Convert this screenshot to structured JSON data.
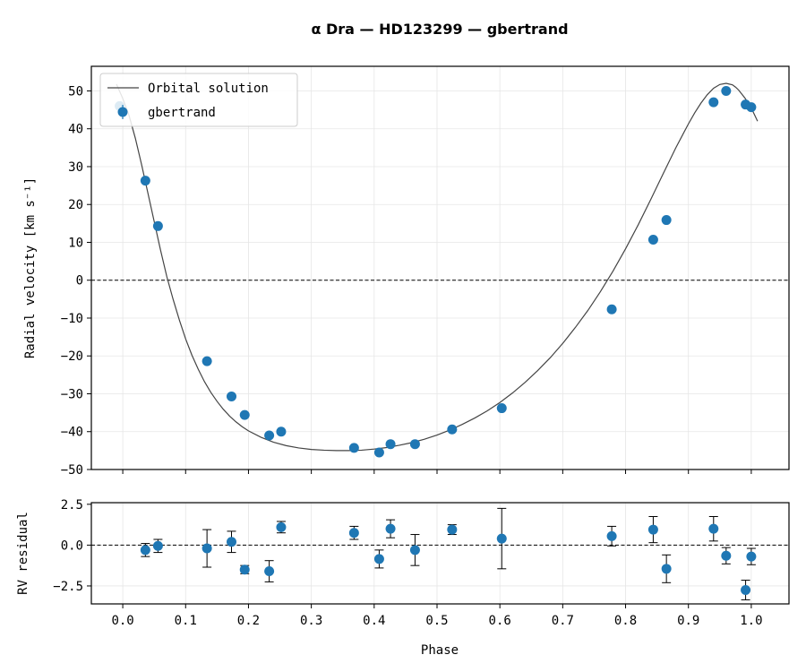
{
  "chart_data": {
    "type": "scatter",
    "title": "α Dra — HD123299 — gbertrand",
    "colors": {
      "points": "#1f77b4",
      "model": "#444444",
      "zero_line": "#000000",
      "grid": "#e6e6e6"
    },
    "legend": {
      "placement": "top-left",
      "entries": [
        "Orbital solution",
        "gbertrand"
      ]
    },
    "shared_x": {
      "label": "Phase",
      "lim": [
        -0.05,
        1.06
      ],
      "ticks": [
        0.0,
        0.1,
        0.2,
        0.3,
        0.4,
        0.5,
        0.6,
        0.7,
        0.8,
        0.9,
        1.0
      ],
      "tick_labels": [
        "0.0",
        "0.1",
        "0.2",
        "0.3",
        "0.4",
        "0.5",
        "0.6",
        "0.7",
        "0.8",
        "0.9",
        "1.0"
      ]
    },
    "panels": [
      {
        "ylabel": "Radial velocity [km s⁻¹]",
        "ylim": [
          -50,
          56.5
        ],
        "yticks": [
          -50,
          -40,
          -30,
          -20,
          -10,
          0,
          10,
          20,
          30,
          40,
          50
        ],
        "ytick_labels": [
          "−50",
          "−40",
          "−30",
          "−20",
          "−10",
          "0",
          "10",
          "20",
          "30",
          "40",
          "50"
        ],
        "grid": true,
        "zero_line": true,
        "model_series": {
          "name": "Orbital solution",
          "phase": [
            -0.01,
            0.0,
            0.01,
            0.02,
            0.03,
            0.04,
            0.05,
            0.06,
            0.07,
            0.08,
            0.09,
            0.1,
            0.11,
            0.12,
            0.13,
            0.14,
            0.15,
            0.16,
            0.17,
            0.18,
            0.19,
            0.2,
            0.22,
            0.24,
            0.26,
            0.28,
            0.3,
            0.32,
            0.34,
            0.36,
            0.38,
            0.4,
            0.42,
            0.44,
            0.46,
            0.48,
            0.5,
            0.52,
            0.54,
            0.56,
            0.58,
            0.6,
            0.62,
            0.64,
            0.66,
            0.68,
            0.7,
            0.72,
            0.74,
            0.76,
            0.78,
            0.8,
            0.82,
            0.84,
            0.86,
            0.88,
            0.9,
            0.91,
            0.92,
            0.93,
            0.94,
            0.95,
            0.96,
            0.97,
            0.975,
            0.98,
            0.99,
            1.0,
            1.01
          ],
          "rv": [
            51.8,
            48.0,
            43.5,
            37.5,
            30.5,
            23.0,
            15.5,
            8.0,
            1.0,
            -5.0,
            -10.5,
            -15.5,
            -19.8,
            -23.5,
            -26.8,
            -29.6,
            -32.0,
            -34.1,
            -35.9,
            -37.4,
            -38.7,
            -39.8,
            -41.5,
            -42.8,
            -43.7,
            -44.3,
            -44.7,
            -44.9,
            -45.0,
            -45.0,
            -44.9,
            -44.6,
            -44.2,
            -43.6,
            -42.9,
            -42.0,
            -40.9,
            -39.6,
            -38.1,
            -36.4,
            -34.5,
            -32.3,
            -29.8,
            -27.0,
            -23.9,
            -20.5,
            -16.7,
            -12.5,
            -8.0,
            -3.0,
            2.4,
            8.3,
            14.6,
            21.3,
            28.2,
            35.0,
            41.3,
            44.2,
            46.8,
            49.0,
            50.7,
            51.7,
            52.0,
            51.6,
            51.0,
            50.2,
            48.1,
            45.5,
            42.0
          ]
        },
        "points": {
          "name": "gbertrand",
          "phase": [
            -0.005,
            0.036,
            0.056,
            0.134,
            0.173,
            0.194,
            0.233,
            0.252,
            0.368,
            0.408,
            0.426,
            0.465,
            0.524,
            0.603,
            0.778,
            0.844,
            0.865,
            0.94,
            0.96,
            0.991,
            1.0
          ],
          "rv": [
            46.0,
            26.3,
            14.3,
            -21.4,
            -30.7,
            -35.6,
            -41.0,
            -40.0,
            -44.3,
            -45.5,
            -43.3,
            -43.3,
            -39.4,
            -33.8,
            -7.7,
            10.7,
            15.9,
            47.0,
            50.0,
            46.4,
            45.7
          ]
        }
      },
      {
        "ylabel": "RV residual",
        "ylim": [
          -3.6,
          2.6
        ],
        "yticks": [
          -2.5,
          0.0,
          2.5
        ],
        "ytick_labels": [
          "−2.5",
          "0.0",
          "2.5"
        ],
        "grid": true,
        "zero_line": true,
        "points": {
          "phase": [
            0.036,
            0.056,
            0.134,
            0.173,
            0.194,
            0.233,
            0.252,
            0.368,
            0.408,
            0.426,
            0.465,
            0.524,
            0.603,
            0.778,
            0.844,
            0.865,
            0.94,
            0.96,
            0.991,
            1.0
          ],
          "residual": [
            -0.3,
            -0.05,
            -0.2,
            0.2,
            -1.5,
            -1.6,
            1.1,
            0.75,
            -0.85,
            1.0,
            -0.3,
            0.95,
            0.4,
            0.55,
            0.95,
            -1.45,
            1.0,
            -0.65,
            -2.75,
            -0.7
          ],
          "error": [
            0.4,
            0.4,
            1.15,
            0.65,
            0.25,
            0.65,
            0.35,
            0.4,
            0.55,
            0.55,
            0.95,
            0.3,
            1.85,
            0.6,
            0.8,
            0.85,
            0.75,
            0.5,
            0.6,
            0.5
          ]
        }
      }
    ]
  }
}
